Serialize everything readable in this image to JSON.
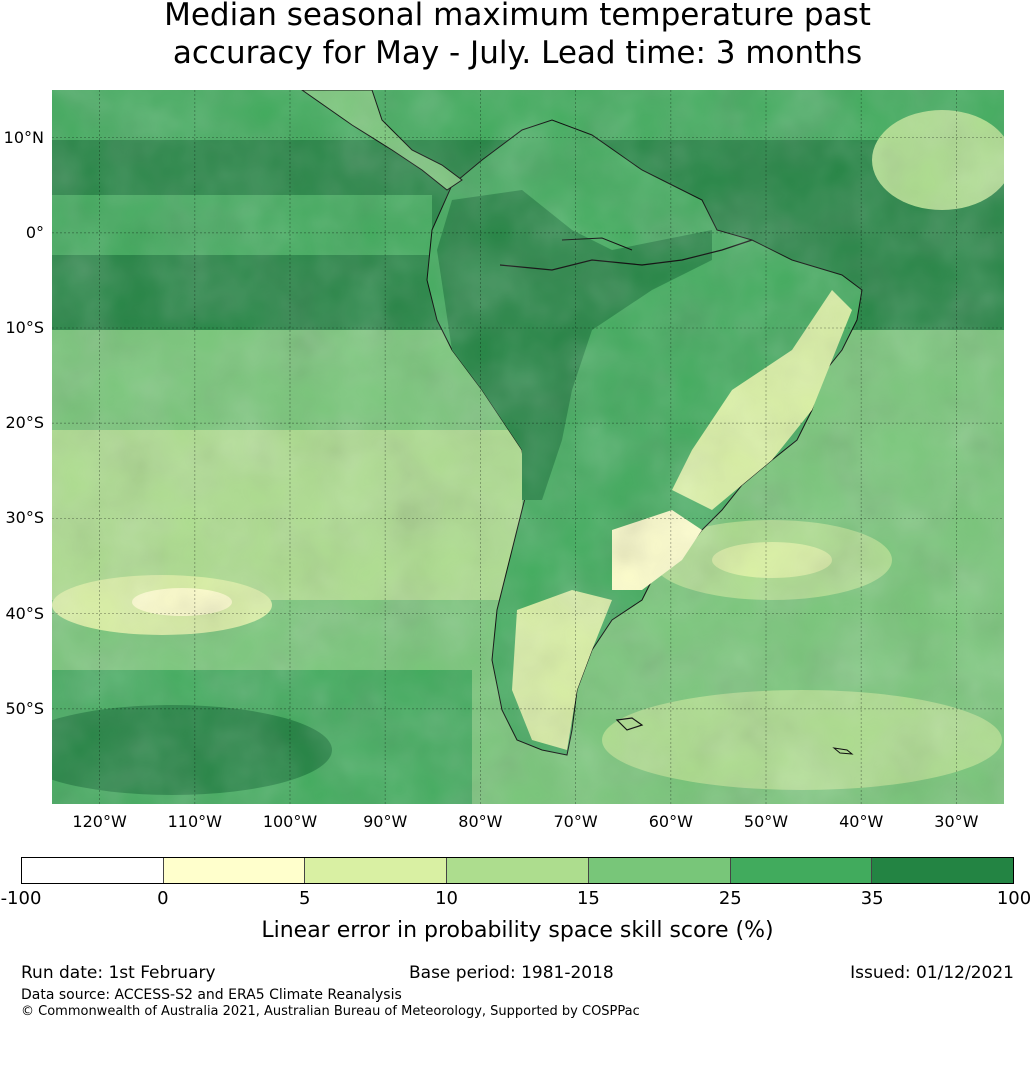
{
  "title": {
    "line1": "Median seasonal maximum temperature past",
    "line2": "accuracy for May - July. Lead time: 3 months"
  },
  "map": {
    "lat_labels": [
      "10°N",
      "0°",
      "10°S",
      "20°S",
      "30°S",
      "40°S",
      "50°S"
    ],
    "lon_labels": [
      "120°W",
      "110°W",
      "100°W",
      "90°W",
      "80°W",
      "70°W",
      "60°W",
      "50°W",
      "40°W",
      "30°W"
    ],
    "lat_range": [
      -60,
      15
    ],
    "lon_range": [
      -125,
      -25
    ]
  },
  "legend": {
    "ticks": [
      "-100",
      "0",
      "5",
      "10",
      "15",
      "25",
      "35",
      "100"
    ],
    "colors": [
      "#ffffff",
      "#ffffcc",
      "#d9f0a3",
      "#addd8e",
      "#78c679",
      "#41ab5d",
      "#238443"
    ],
    "label": "Linear error in probability space skill score (%)"
  },
  "footer": {
    "run_date": "Run date: 1st February",
    "base_period": "Base period: 1981-2018",
    "issued": "Issued: 01/12/2021",
    "data_source": "Data source: ACCESS-S2 and ERA5 Climate Reanalysis",
    "copyright": "© Commonwealth of Australia 2021, Australian Bureau of Meteorology, Supported by COSPPac"
  }
}
